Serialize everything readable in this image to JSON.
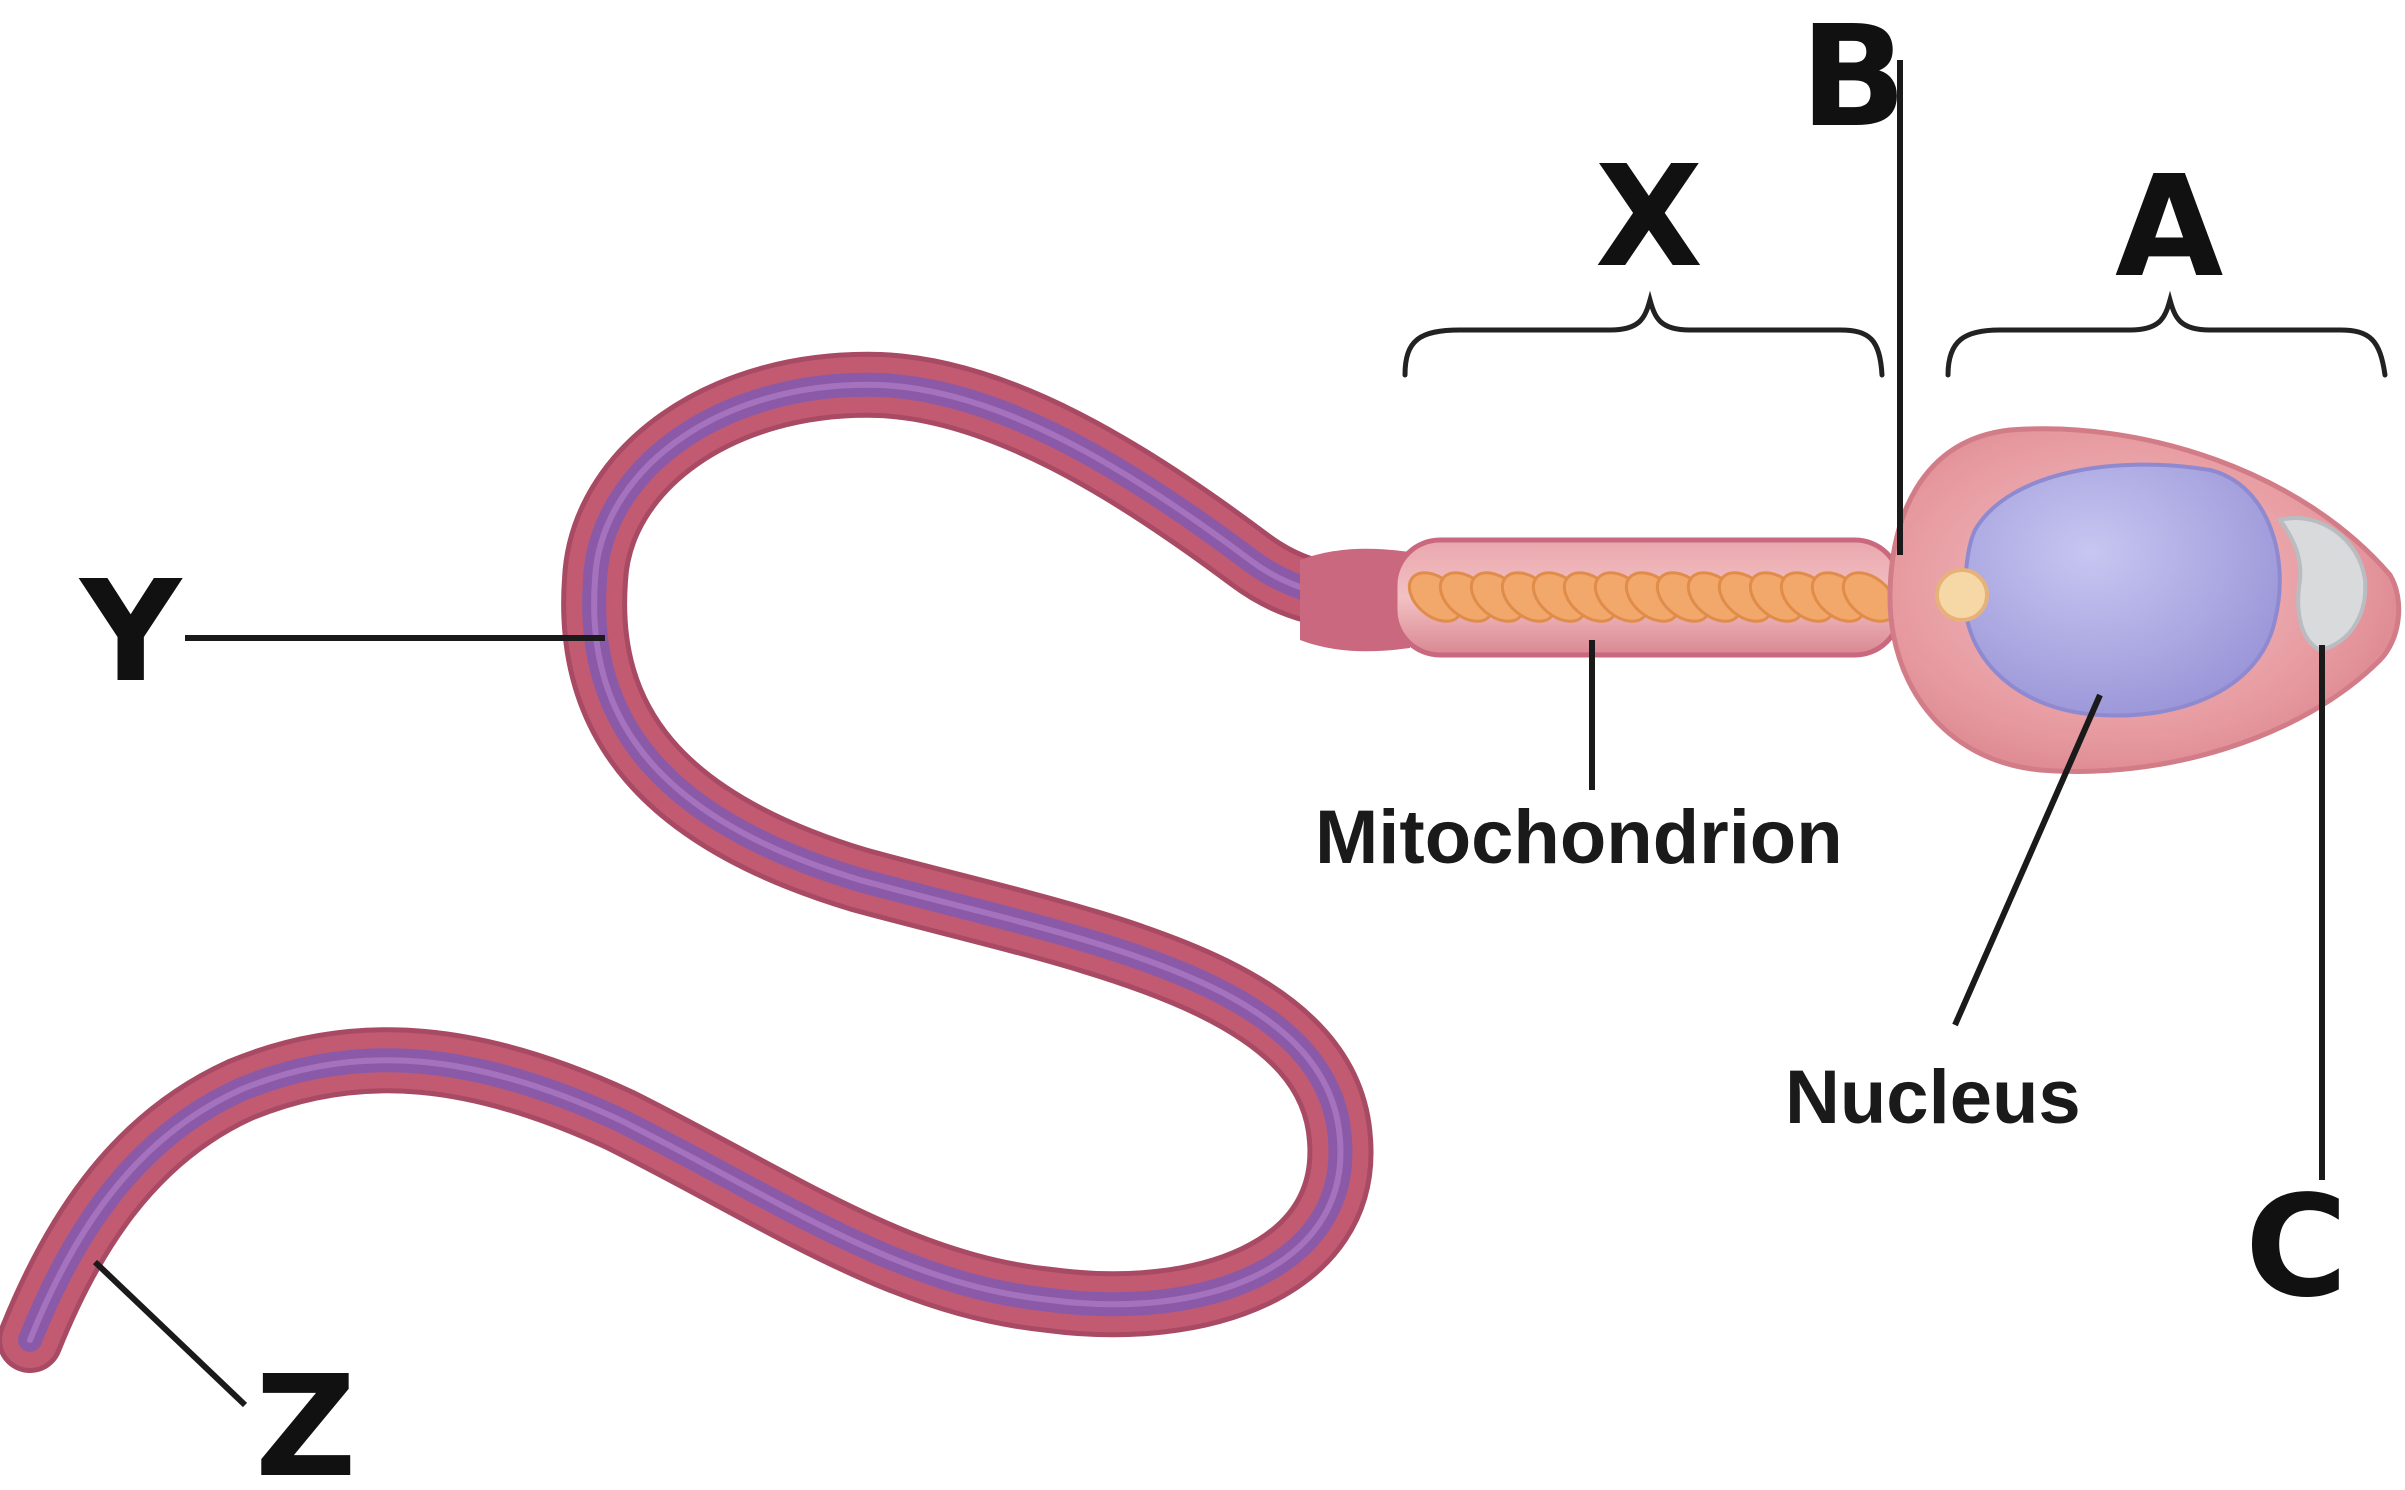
{
  "labels": {
    "a": "A",
    "b": "B",
    "c": "C",
    "x": "X",
    "y": "Y",
    "z": "Z",
    "mitochondrion": "Mitochondrion",
    "nucleus": "Nucleus"
  },
  "colors": {
    "tail_outer": "#c25a72",
    "tail_core": "#8a5aa8",
    "head_outer": "#e79aa2",
    "nucleus": "#a9a6e0",
    "acrosome": "#d8dadc",
    "mitochondria": "#f2a86a",
    "centriole": "#f6d7a6"
  }
}
